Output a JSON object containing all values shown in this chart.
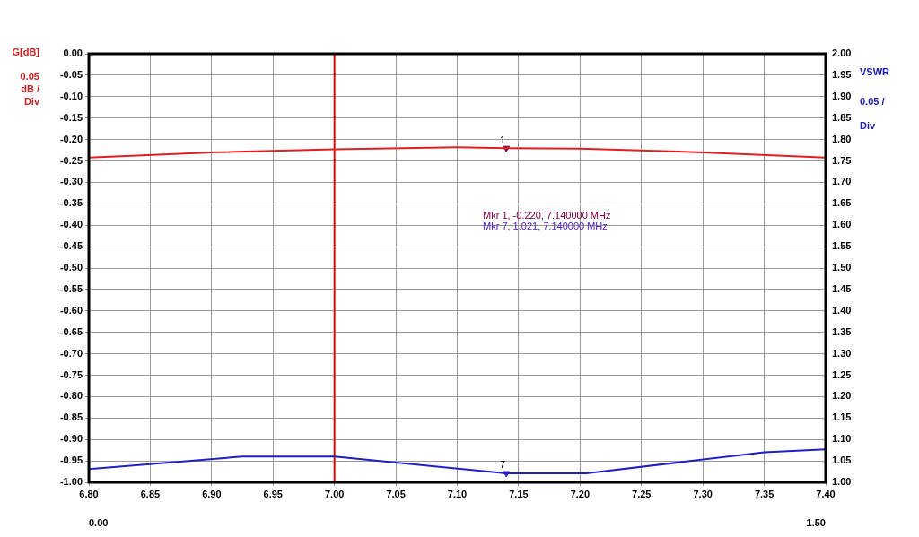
{
  "chart_data": {
    "type": "line",
    "ylabel": "G[dB]",
    "y2label": "VSWR",
    "annotations": [
      "0.05 dB / Div",
      "0.05 / Div",
      "Mkr 1, -0.220, 7.140000 MHz",
      "Mkr 7, 1.021, 7.140000 MHz",
      {
        "text": "1",
        "x": 7.14,
        "y": -0.22
      },
      {
        "text": "7",
        "x": 7.14,
        "y": -0.979
      }
    ],
    "xlim": [
      6.8,
      7.4
    ],
    "xticks": [
      {
        "value": 6.8,
        "label": "6.80"
      },
      {
        "value": 6.85,
        "label": "6.85"
      },
      {
        "value": 6.9,
        "label": "6.90"
      },
      {
        "value": 6.95,
        "label": "6.95"
      },
      {
        "value": 7.0,
        "label": "7.00"
      },
      {
        "value": 7.05,
        "label": "7.05"
      },
      {
        "value": 7.1,
        "label": "7.10"
      },
      {
        "value": 7.15,
        "label": "7.15"
      },
      {
        "value": 7.2,
        "label": "7.20"
      },
      {
        "value": 7.25,
        "label": "7.25"
      },
      {
        "value": 7.3,
        "label": "7.30"
      },
      {
        "value": 7.35,
        "label": "7.35"
      },
      {
        "value": 7.4,
        "label": "7.40"
      }
    ],
    "x2lim": [
      0,
      1.5
    ],
    "x2ticks": [
      {
        "value": 0,
        "label": "0.00"
      },
      {
        "value": 1.5,
        "label": "1.50"
      }
    ],
    "ylim": [
      -1,
      0
    ],
    "yticks": [
      {
        "value": -1,
        "label": "-1.00"
      },
      {
        "value": -0.95,
        "label": "-0.95"
      },
      {
        "value": -0.9,
        "label": "-0.90"
      },
      {
        "value": -0.85,
        "label": "-0.85"
      },
      {
        "value": -0.8,
        "label": "-0.80"
      },
      {
        "value": -0.75,
        "label": "-0.75"
      },
      {
        "value": -0.7,
        "label": "-0.70"
      },
      {
        "value": -0.65,
        "label": "-0.65"
      },
      {
        "value": -0.6,
        "label": "-0.60"
      },
      {
        "value": -0.55,
        "label": "-0.55"
      },
      {
        "value": -0.5,
        "label": "-0.50"
      },
      {
        "value": -0.45,
        "label": "-0.45"
      },
      {
        "value": -0.4,
        "label": "-0.40"
      },
      {
        "value": -0.35,
        "label": "-0.35"
      },
      {
        "value": -0.3,
        "label": "-0.30"
      },
      {
        "value": -0.25,
        "label": "-0.25"
      },
      {
        "value": -0.2,
        "label": "-0.20"
      },
      {
        "value": -0.15,
        "label": "-0.15"
      },
      {
        "value": -0.1,
        "label": "-0.10"
      },
      {
        "value": -0.05,
        "label": "-0.05"
      },
      {
        "value": 0,
        "label": "0.00"
      }
    ],
    "y2lim": [
      1,
      2
    ],
    "y2ticks": [
      {
        "value": 1,
        "label": "1.00"
      },
      {
        "value": 1.05,
        "label": "1.05"
      },
      {
        "value": 1.1,
        "label": "1.10"
      },
      {
        "value": 1.15,
        "label": "1.15"
      },
      {
        "value": 1.2,
        "label": "1.20"
      },
      {
        "value": 1.25,
        "label": "1.25"
      },
      {
        "value": 1.3,
        "label": "1.30"
      },
      {
        "value": 1.35,
        "label": "1.35"
      },
      {
        "value": 1.4,
        "label": "1.40"
      },
      {
        "value": 1.45,
        "label": "1.45"
      },
      {
        "value": 1.5,
        "label": "1.50"
      },
      {
        "value": 1.55,
        "label": "1.55"
      },
      {
        "value": 1.6,
        "label": "1.60"
      },
      {
        "value": 1.65,
        "label": "1.65"
      },
      {
        "value": 1.7,
        "label": "1.70"
      },
      {
        "value": 1.75,
        "label": "1.75"
      },
      {
        "value": 1.8,
        "label": "1.80"
      },
      {
        "value": 1.85,
        "label": "1.85"
      },
      {
        "value": 1.9,
        "label": "1.90"
      },
      {
        "value": 1.95,
        "label": "1.95"
      },
      {
        "value": 2,
        "label": "2.00"
      }
    ],
    "grid": true,
    "legend": false,
    "marker": "none",
    "ref_lines": [
      {
        "axis": "x",
        "value": 7.0,
        "color": "#cc1010"
      }
    ],
    "series": [
      {
        "color": "#e02020",
        "x": [
          6.8,
          6.9,
          7.0,
          7.1,
          7.14,
          7.2,
          7.3,
          7.4
        ],
        "values": [
          -0.242,
          -0.23,
          -0.223,
          -0.218,
          -0.22,
          -0.221,
          -0.23,
          -0.242
        ]
      },
      {
        "axis": "y2",
        "color": "#2020c8",
        "x": [
          6.8,
          6.925,
          7.0,
          7.14,
          7.205,
          7.35,
          7.4
        ],
        "values": [
          1.031,
          1.06,
          1.06,
          1.021,
          1.021,
          1.07,
          1.077
        ]
      },
      {
        "type": "scatter",
        "marker": "triangle",
        "color": "#800040",
        "x": [
          7.14
        ],
        "values": [
          -0.22
        ]
      },
      {
        "type": "scatter",
        "marker": "triangle",
        "axis": "y2",
        "color": "#5020c0",
        "x": [
          7.14
        ],
        "values": [
          1.021
        ]
      }
    ]
  }
}
